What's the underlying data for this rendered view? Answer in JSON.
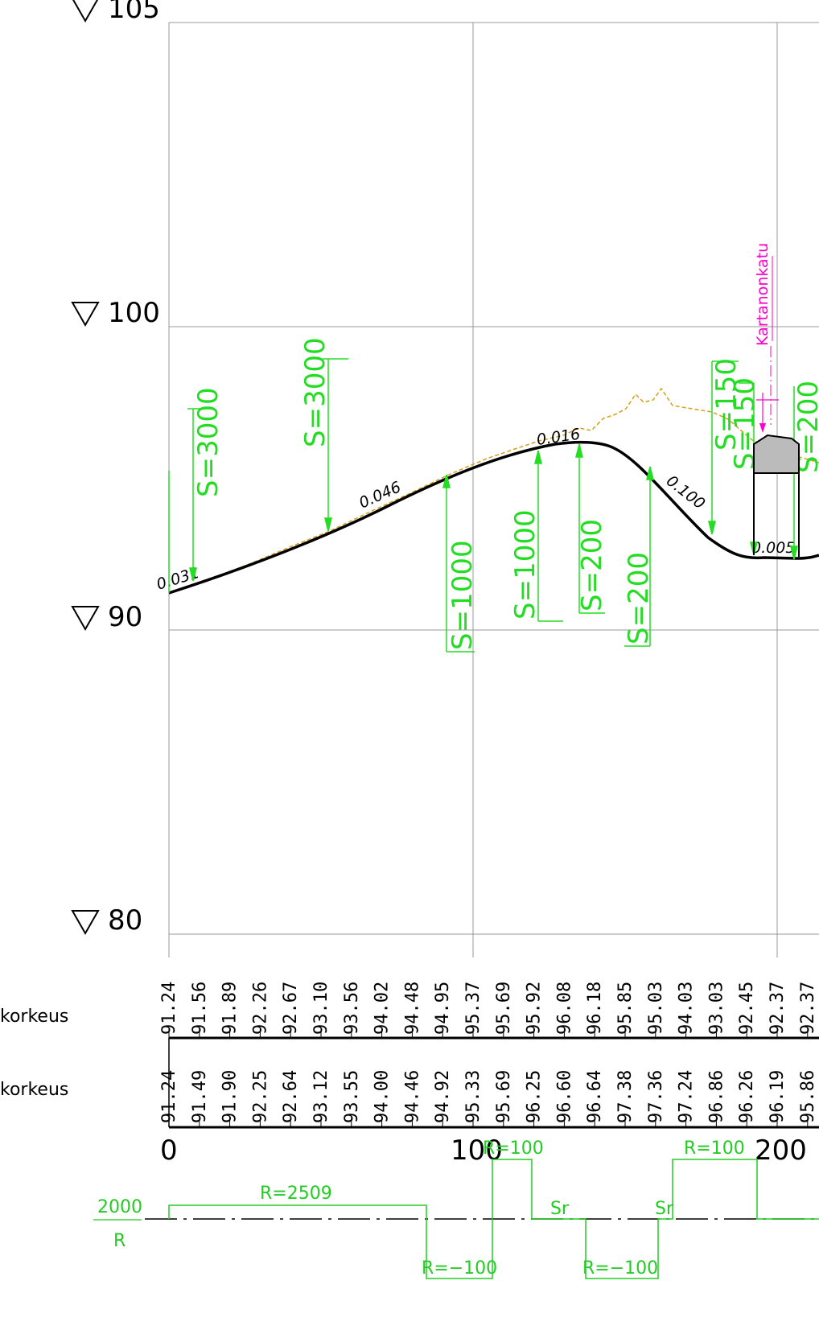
{
  "elevation_levels": [
    {
      "label": "105",
      "value": 105
    },
    {
      "label": "100",
      "value": 100
    },
    {
      "label": "90",
      "value": 90
    },
    {
      "label": "80",
      "value": 80
    }
  ],
  "station_labels": [
    "0",
    "100",
    "200"
  ],
  "row_labels": {
    "design": "korkeus",
    "ground": "korkeus"
  },
  "design_heights": [
    "91.24",
    "91.56",
    "91.89",
    "92.26",
    "92.67",
    "93.10",
    "93.56",
    "94.02",
    "94.48",
    "94.95",
    "95.37",
    "95.69",
    "95.92",
    "96.08",
    "96.18",
    "95.85",
    "95.03",
    "94.03",
    "93.03",
    "92.45",
    "92.37",
    "92.37"
  ],
  "ground_heights": [
    "91.24",
    "91.49",
    "91.90",
    "92.25",
    "92.64",
    "93.12",
    "93.55",
    "94.00",
    "94.46",
    "94.92",
    "95.33",
    "95.69",
    "96.25",
    "96.60",
    "96.64",
    "97.38",
    "97.36",
    "97.24",
    "96.86",
    "96.26",
    "96.19",
    "95.86"
  ],
  "gradients": [
    "0.031",
    "0.046",
    "0.016",
    "0.100",
    "0.005"
  ],
  "vertical_curves": [
    "S=3000",
    "S=3000",
    "S=1000",
    "S=1000",
    "S=200",
    "S=200",
    "S=150",
    "S=150",
    "S=200"
  ],
  "intersection_label": "Kartanonkatu",
  "curvature_diagram": {
    "scale": "2000",
    "axis": "R",
    "labels": [
      "R=2509",
      "R=−100",
      "R=100",
      "Sr",
      "R=−100",
      "Sr",
      "R=100"
    ]
  },
  "colors": {
    "profile": "#000000",
    "curves": "#22dd22",
    "ground_line": "#d4a017",
    "intersection": "#ff00cc",
    "grid": "#9a9a9a"
  }
}
